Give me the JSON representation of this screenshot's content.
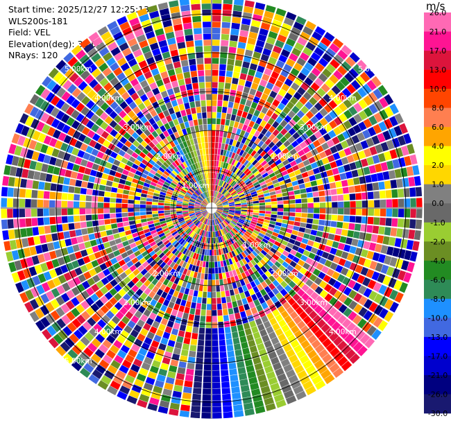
{
  "info": {
    "start_time": "Start time: 2025/12/27 12:25:13",
    "device": "WLS200s-181",
    "field": "Field: VEL",
    "elevation": "Elevation(deg): 35.00",
    "nrays": "NRays: 120"
  },
  "colorbar": {
    "title": "m/s",
    "colors": [
      "#191970",
      "#000080",
      "#0000cd",
      "#0000ff",
      "#4169e1",
      "#1e90ff",
      "#2e8b57",
      "#228b22",
      "#6b8e23",
      "#9acd32",
      "#696969",
      "#808080",
      "#ffd700",
      "#ffff00",
      "#ffa500",
      "#ff7f50",
      "#ff4500",
      "#ff0000",
      "#dc143c",
      "#ff1493",
      "#ff69b4"
    ],
    "tick_labels": [
      "-30.0",
      "-26.0",
      "-21.0",
      "-17.0",
      "-13.0",
      "-10.0",
      "-8.0",
      "-6.0",
      "-4.0",
      "-2.0",
      "-1.0",
      "0.0",
      "1.0",
      "2.0",
      "4.0",
      "6.0",
      "8.0",
      "10.0",
      "13.0",
      "17.0",
      "21.0",
      "26.0"
    ]
  },
  "chart_data": {
    "type": "heatmap",
    "projection": "polar-ppi",
    "field": "VEL",
    "units": "m/s",
    "nrays": 120,
    "vmin": -30.0,
    "vmax": 26.0,
    "range_rings": [
      1.0,
      2.0,
      3.0,
      4.0,
      5.0
    ],
    "ring_label": "3.00km",
    "ring_label_4": "4.00km",
    "ring_label_2": "2.00km",
    "ring_label_1": "1.00km",
    "ring_label_5": "5.00km",
    "gates": 34,
    "notes_sector": "structured ramp at bottom-right and rainbow wedge at top"
  }
}
